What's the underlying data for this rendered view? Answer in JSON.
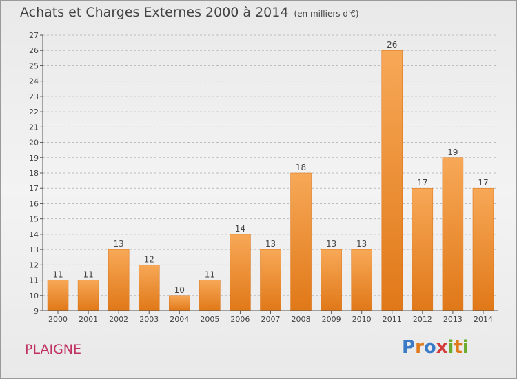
{
  "header": {
    "title": "Achats et Charges Externes 2000 à 2014",
    "subtitle": "(en milliers d'€)"
  },
  "footer": {
    "commune": "PLAIGNE",
    "logo_text": "Proxiti"
  },
  "colors": {
    "bar_fill": "#f08a2c",
    "bar_fill_light": "#f5a55a",
    "accent_commune": "#c03060"
  },
  "chart_data": {
    "type": "bar",
    "categories": [
      "2000",
      "2001",
      "2002",
      "2003",
      "2004",
      "2005",
      "2006",
      "2007",
      "2008",
      "2009",
      "2010",
      "2011",
      "2012",
      "2013",
      "2014"
    ],
    "values": [
      11,
      11,
      13,
      12,
      10,
      11,
      14,
      13,
      18,
      13,
      13,
      26,
      17,
      19,
      17
    ],
    "ylim": [
      9,
      27
    ],
    "yticks": [
      9,
      10,
      11,
      12,
      13,
      14,
      15,
      16,
      17,
      18,
      19,
      20,
      21,
      22,
      23,
      24,
      25,
      26,
      27
    ],
    "grid": "horizontal-dashed",
    "legend": "none"
  }
}
